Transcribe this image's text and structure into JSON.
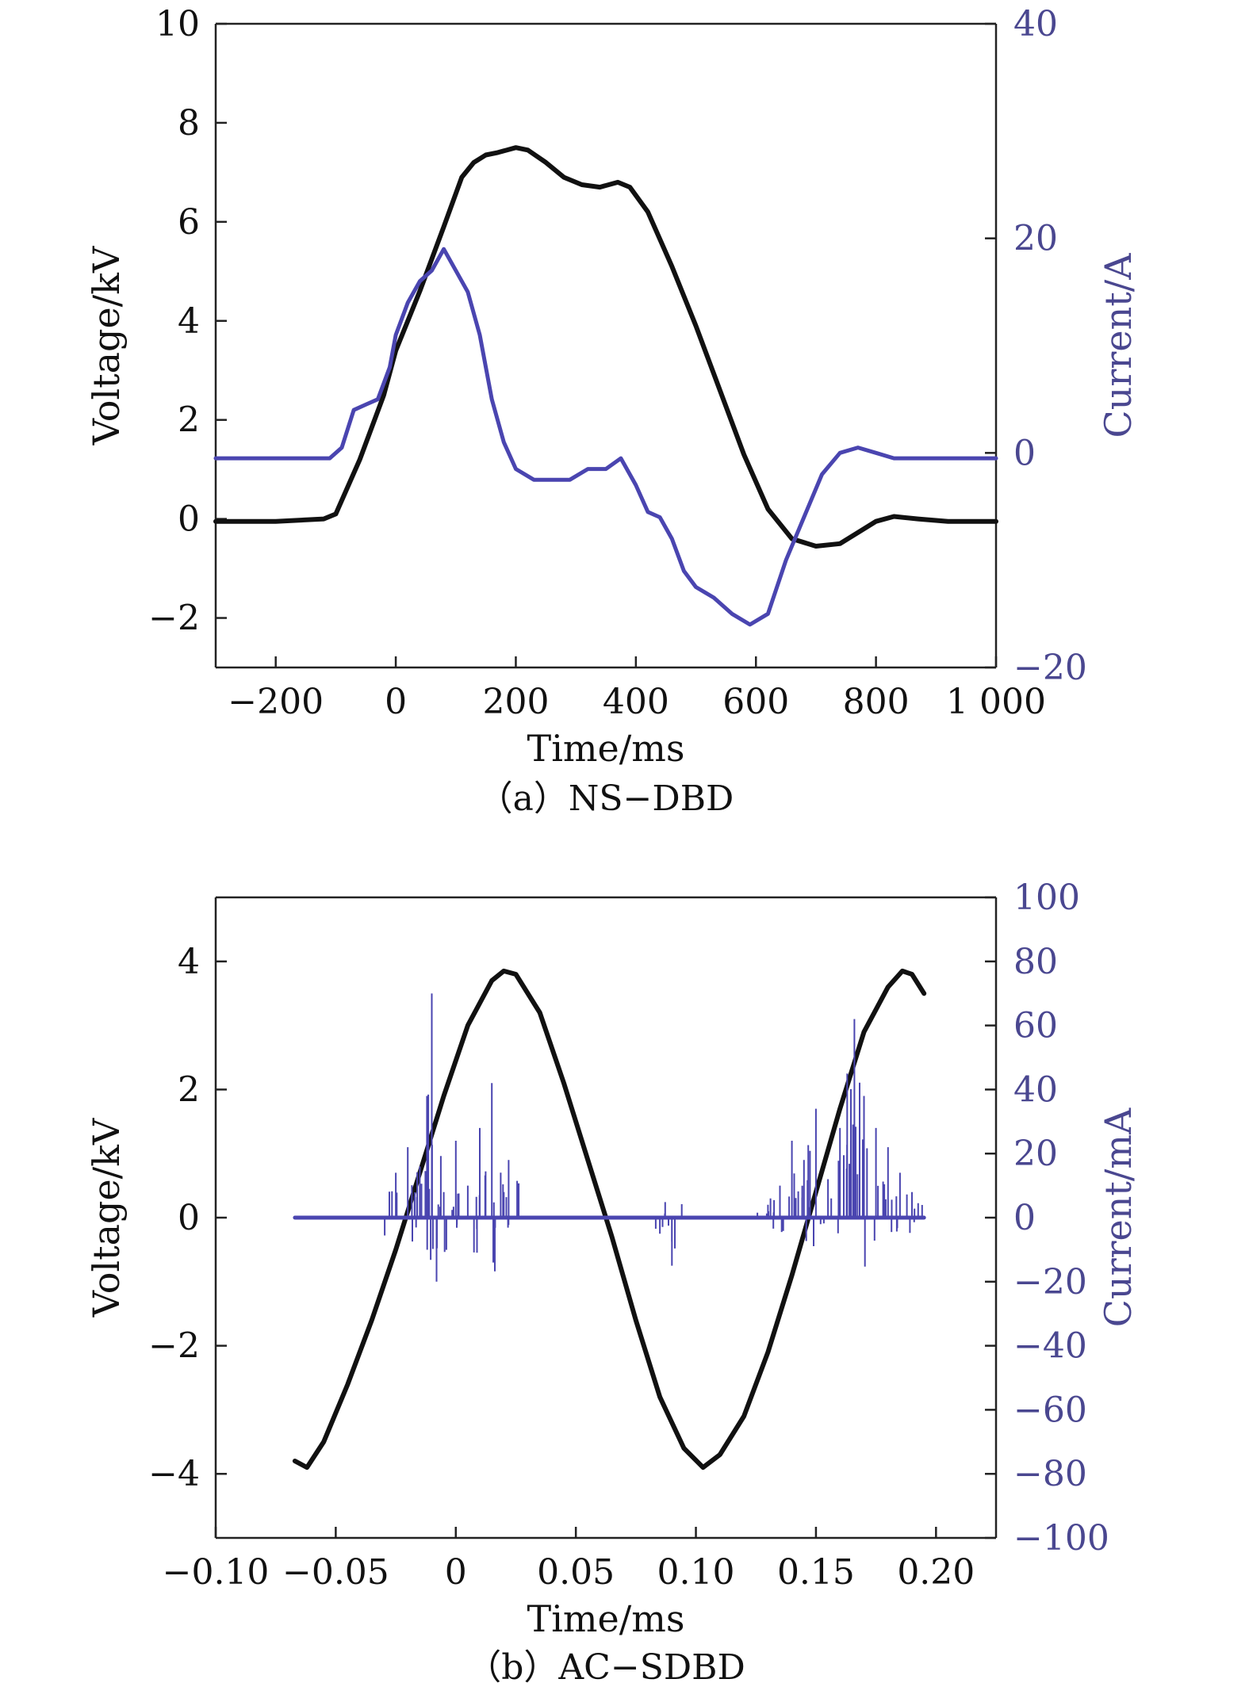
{
  "chart_data": [
    {
      "type": "line",
      "caption": "（a）NS−DBD",
      "xlabel": "Time/ms",
      "ylabel": "Voltage/kV",
      "y2label": "Current/A",
      "xlim": [
        -300,
        1000
      ],
      "ylim": [
        -3,
        10
      ],
      "y2lim": [
        -20,
        40
      ],
      "xticks": [
        {
          "value": -200,
          "label": "−200"
        },
        {
          "value": 0,
          "label": "0"
        },
        {
          "value": 200,
          "label": "200"
        },
        {
          "value": 400,
          "label": "400"
        },
        {
          "value": 600,
          "label": "600"
        },
        {
          "value": 800,
          "label": "800"
        },
        {
          "value": 1000,
          "label": "1 000"
        }
      ],
      "yticks": [
        {
          "value": -2,
          "label": "−2"
        },
        {
          "value": 0,
          "label": "0"
        },
        {
          "value": 2,
          "label": "2"
        },
        {
          "value": 4,
          "label": "4"
        },
        {
          "value": 6,
          "label": "6"
        },
        {
          "value": 8,
          "label": "8"
        },
        {
          "value": 10,
          "label": "10"
        }
      ],
      "y2ticks": [
        {
          "value": -20,
          "label": "−20"
        },
        {
          "value": 0,
          "label": "0"
        },
        {
          "value": 20,
          "label": "20"
        },
        {
          "value": 40,
          "label": "40"
        }
      ],
      "colors": {
        "voltage": "#111111",
        "current": "#4a45b0",
        "current_axis": "#4a4790"
      },
      "series": [
        {
          "axis": "left",
          "color": "#111111",
          "x": [
            -300,
            -200,
            -120,
            -100,
            -60,
            -20,
            0,
            40,
            80,
            110,
            130,
            150,
            170,
            200,
            220,
            250,
            280,
            310,
            340,
            370,
            390,
            420,
            460,
            500,
            540,
            580,
            620,
            660,
            700,
            740,
            780,
            800,
            830,
            870,
            920,
            1000
          ],
          "y": [
            -0.05,
            -0.05,
            0,
            0.1,
            1.2,
            2.5,
            3.4,
            4.6,
            5.9,
            6.9,
            7.2,
            7.35,
            7.4,
            7.5,
            7.45,
            7.2,
            6.9,
            6.75,
            6.7,
            6.8,
            6.7,
            6.2,
            5.1,
            3.9,
            2.6,
            1.3,
            0.2,
            -0.4,
            -0.55,
            -0.5,
            -0.2,
            -0.05,
            0.05,
            0,
            -0.05,
            -0.05
          ]
        },
        {
          "axis": "right",
          "color": "#4a45b0",
          "x": [
            -300,
            -200,
            -110,
            -90,
            -70,
            -50,
            -30,
            -10,
            0,
            20,
            40,
            60,
            80,
            100,
            120,
            140,
            160,
            180,
            200,
            230,
            260,
            290,
            320,
            350,
            375,
            400,
            420,
            440,
            460,
            480,
            500,
            530,
            560,
            590,
            620,
            650,
            680,
            710,
            740,
            770,
            800,
            830,
            860,
            900,
            1000
          ],
          "y": [
            -0.5,
            -0.5,
            -0.5,
            0.5,
            4,
            4.5,
            5,
            8,
            11,
            14,
            16,
            17,
            19,
            17,
            15,
            11,
            5,
            1,
            -1.5,
            -2.5,
            -2.5,
            -2.5,
            -1.5,
            -1.5,
            -0.5,
            -3,
            -5.5,
            -6,
            -8,
            -11,
            -12.5,
            -13.5,
            -15,
            -16,
            -15,
            -10,
            -6,
            -2,
            0,
            0.5,
            0,
            -0.5,
            -0.5,
            -0.5,
            -0.5
          ]
        }
      ]
    },
    {
      "type": "line",
      "caption": "（b）AC−SDBD",
      "xlabel": "Time/ms",
      "ylabel": "Voltage/kV",
      "y2label": "Current/mA",
      "xlim": [
        -0.1,
        0.225
      ],
      "ylim": [
        -5,
        5
      ],
      "y2lim": [
        -100,
        100
      ],
      "xticks": [
        {
          "value": -0.1,
          "label": "−0.10"
        },
        {
          "value": -0.05,
          "label": "−0.05"
        },
        {
          "value": 0,
          "label": "0"
        },
        {
          "value": 0.05,
          "label": "0.05"
        },
        {
          "value": 0.1,
          "label": "0.10"
        },
        {
          "value": 0.15,
          "label": "0.15"
        },
        {
          "value": 0.2,
          "label": "0.20"
        }
      ],
      "yticks": [
        {
          "value": -4,
          "label": "−4"
        },
        {
          "value": -2,
          "label": "−2"
        },
        {
          "value": 0,
          "label": "0"
        },
        {
          "value": 2,
          "label": "2"
        },
        {
          "value": 4,
          "label": "4"
        }
      ],
      "y2ticks": [
        {
          "value": -100,
          "label": "−100"
        },
        {
          "value": -80,
          "label": "−80"
        },
        {
          "value": -60,
          "label": "−60"
        },
        {
          "value": -40,
          "label": "−40"
        },
        {
          "value": -20,
          "label": "−20"
        },
        {
          "value": 0,
          "label": "0"
        },
        {
          "value": 20,
          "label": "20"
        },
        {
          "value": 40,
          "label": "40"
        },
        {
          "value": 60,
          "label": "60"
        },
        {
          "value": 80,
          "label": "80"
        },
        {
          "value": 100,
          "label": "100"
        }
      ],
      "colors": {
        "voltage": "#111111",
        "current": "#4a45b0",
        "current_axis": "#4a4790"
      },
      "series": [
        {
          "axis": "left",
          "color": "#111111",
          "x": [
            -0.067,
            -0.062,
            -0.055,
            -0.045,
            -0.035,
            -0.025,
            -0.015,
            -0.005,
            0.005,
            0.015,
            0.02,
            0.025,
            0.035,
            0.045,
            0.055,
            0.065,
            0.075,
            0.085,
            0.095,
            0.103,
            0.11,
            0.12,
            0.13,
            0.14,
            0.15,
            0.16,
            0.17,
            0.18,
            0.186,
            0.19,
            0.195
          ],
          "y": [
            -3.8,
            -3.9,
            -3.5,
            -2.6,
            -1.6,
            -0.5,
            0.7,
            1.9,
            3.0,
            3.7,
            3.85,
            3.8,
            3.2,
            2.1,
            0.9,
            -0.3,
            -1.6,
            -2.8,
            -3.6,
            -3.9,
            -3.7,
            -3.1,
            -2.1,
            -0.9,
            0.4,
            1.7,
            2.9,
            3.6,
            3.85,
            3.8,
            3.5
          ]
        },
        {
          "axis": "right",
          "color": "#4a45b0",
          "x": [
            -0.067,
            -0.04,
            -0.03,
            -0.025,
            -0.02,
            -0.015,
            -0.012,
            -0.01,
            -0.008,
            -0.005,
            0,
            0.005,
            0.01,
            0.015,
            0.02,
            0.022,
            0.03,
            0.05,
            0.07,
            0.085,
            0.09,
            0.1,
            0.12,
            0.13,
            0.135,
            0.14,
            0.145,
            0.15,
            0.155,
            0.16,
            0.163,
            0.166,
            0.17,
            0.175,
            0.18,
            0.185,
            0.19,
            0.195
          ],
          "y": [
            0,
            0,
            0,
            14,
            22,
            16,
            38,
            70,
            -20,
            8,
            24,
            10,
            28,
            42,
            8,
            18,
            0,
            0,
            0,
            -5,
            -15,
            0,
            0,
            4,
            10,
            24,
            18,
            34,
            12,
            28,
            45,
            62,
            38,
            28,
            22,
            14,
            8,
            0
          ]
        }
      ]
    }
  ]
}
